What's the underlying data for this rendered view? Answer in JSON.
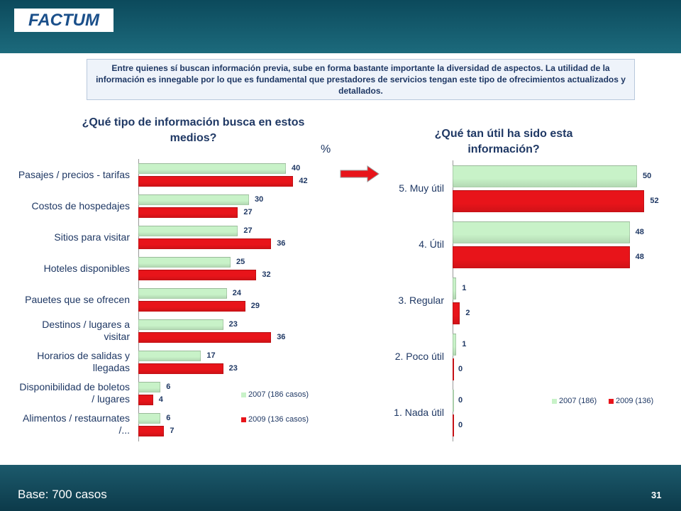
{
  "header": {
    "logo": "FACTUM",
    "note": "Entre quienes sí buscan información previa, sube en forma bastante importante la diversidad de aspectos. La utilidad de la información es innegable por lo que es fundamental que prestadores de servicios tengan este tipo de ofrecimientos actualizados y detallados."
  },
  "percent_label": "%",
  "footer": {
    "base": "Base: 700 casos",
    "page": "31"
  },
  "chart_data": [
    {
      "type": "bar",
      "orientation": "horizontal",
      "title": "¿Qué tipo de información busca en estos medios?",
      "categories": [
        "Pasajes / precios - tarifas",
        "Costos de hospedajes",
        "Sitios para visitar",
        "Hoteles disponibles",
        "Pauetes que se ofrecen",
        "Destinos / lugares a visitar",
        "Horarios de salidas y llegadas",
        "Disponibilidad de boletos / lugares",
        "Alimentos / restaurnates /..."
      ],
      "series": [
        {
          "name": "2007 (186 casos)",
          "color": "#c8f2c8",
          "values": [
            40,
            30,
            27,
            25,
            24,
            23,
            17,
            6,
            6
          ]
        },
        {
          "name": "2009 (136 casos)",
          "color": "#e8141a",
          "values": [
            42,
            27,
            36,
            32,
            29,
            36,
            23,
            4,
            7
          ]
        }
      ],
      "xlim": [
        0,
        50
      ],
      "legend": "bottom-right"
    },
    {
      "type": "bar",
      "orientation": "horizontal",
      "title": "¿Qué tan útil ha sido esta información?",
      "categories": [
        "5. Muy útil",
        "4. Útil",
        "3. Regular",
        "2. Poco útil",
        "1. Nada útil"
      ],
      "series": [
        {
          "name": "2007 (186)",
          "color": "#c8f2c8",
          "values": [
            50,
            48,
            1,
            1,
            0
          ]
        },
        {
          "name": "2009 (136)",
          "color": "#e8141a",
          "values": [
            52,
            48,
            2,
            0,
            0
          ]
        }
      ],
      "xlim": [
        0,
        55
      ],
      "legend": "bottom-right"
    }
  ]
}
